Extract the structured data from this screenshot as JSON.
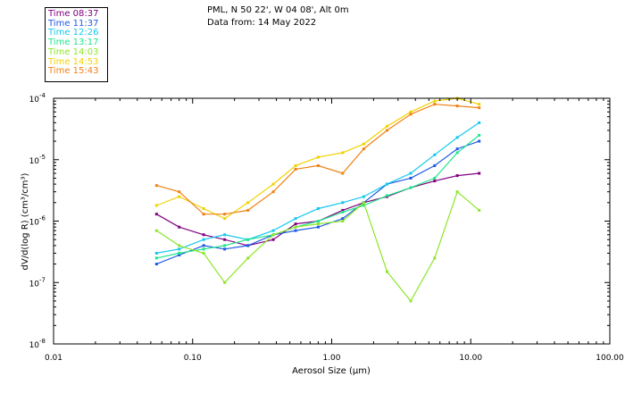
{
  "header": {
    "location": "PML, N 50 22', W 04 08', Alt 0m",
    "date_line": "Data from: 14 May 2022"
  },
  "chart_data": {
    "type": "line",
    "xlabel": "Aerosol Size (μm)",
    "ylabel": "dV/d(log R) (cm³/cm³)",
    "xscale": "log",
    "yscale": "log",
    "xlim": [
      0.01,
      100
    ],
    "ylim": [
      1e-08,
      0.0001
    ],
    "grid": false,
    "legend_position": "top-left",
    "x_ticks": [
      {
        "value": 0.01,
        "label": "0.01"
      },
      {
        "value": 0.1,
        "label": "0.10"
      },
      {
        "value": 1,
        "label": "1.00"
      },
      {
        "value": 10,
        "label": "10.00"
      },
      {
        "value": 100,
        "label": "100.00"
      }
    ],
    "y_ticks": [
      {
        "value": 1e-08,
        "label": "10",
        "exp": "-8"
      },
      {
        "value": 1e-07,
        "label": "10",
        "exp": "-7"
      },
      {
        "value": 1e-06,
        "label": "10",
        "exp": "-6"
      },
      {
        "value": 1e-05,
        "label": "10",
        "exp": "-5"
      },
      {
        "value": 0.0001,
        "label": "10",
        "exp": "-4"
      }
    ],
    "x": [
      0.055,
      0.08,
      0.12,
      0.17,
      0.25,
      0.38,
      0.55,
      0.8,
      1.2,
      1.7,
      2.5,
      3.7,
      5.5,
      8,
      11.5
    ],
    "series": [
      {
        "name": "Time 08:37",
        "color": "#800080",
        "values": [
          1.3e-06,
          8e-07,
          6e-07,
          5e-07,
          4e-07,
          5e-07,
          9e-07,
          1e-06,
          1.5e-06,
          2e-06,
          2.5e-06,
          3.5e-06,
          4.5e-06,
          5.5e-06,
          6e-06
        ]
      },
      {
        "name": "Time 11:37",
        "color": "#1e5ae6",
        "values": [
          2e-07,
          2.8e-07,
          4e-07,
          3.5e-07,
          4e-07,
          6e-07,
          7e-07,
          8e-07,
          1.1e-06,
          2e-06,
          4e-06,
          5e-06,
          8e-06,
          1.5e-05,
          2e-05
        ]
      },
      {
        "name": "Time 12:26",
        "color": "#14c8f0",
        "values": [
          3e-07,
          3.5e-07,
          5e-07,
          6e-07,
          5e-07,
          7e-07,
          1.1e-06,
          1.6e-06,
          2e-06,
          2.5e-06,
          4e-06,
          6e-06,
          1.2e-05,
          2.3e-05,
          4e-05
        ]
      },
      {
        "name": "Time 13:17",
        "color": "#1ee68c",
        "values": [
          2.5e-07,
          3e-07,
          3.5e-07,
          4e-07,
          5e-07,
          6e-07,
          8e-07,
          1e-06,
          1.4e-06,
          1.8e-06,
          2.6e-06,
          3.5e-06,
          5e-06,
          1.3e-05,
          2.5e-05
        ]
      },
      {
        "name": "Time 14:03",
        "color": "#8ce628",
        "values": [
          7e-07,
          4e-07,
          3e-07,
          1e-07,
          2.5e-07,
          6e-07,
          8e-07,
          9e-07,
          1e-06,
          2e-06,
          1.5e-07,
          5e-08,
          2.5e-07,
          3e-06,
          1.5e-06
        ]
      },
      {
        "name": "Time 14:53",
        "color": "#f0d200",
        "values": [
          1.8e-06,
          2.5e-06,
          1.6e-06,
          1.1e-06,
          2e-06,
          4e-06,
          8e-06,
          1.1e-05,
          1.3e-05,
          1.8e-05,
          3.5e-05,
          6e-05,
          9e-05,
          0.0001,
          8e-05
        ]
      },
      {
        "name": "Time 15:43",
        "color": "#f08214",
        "values": [
          3.8e-06,
          3e-06,
          1.3e-06,
          1.3e-06,
          1.5e-06,
          3e-06,
          7e-06,
          8e-06,
          6e-06,
          1.5e-05,
          3e-05,
          5.5e-05,
          8e-05,
          7.5e-05,
          7e-05
        ]
      }
    ]
  }
}
